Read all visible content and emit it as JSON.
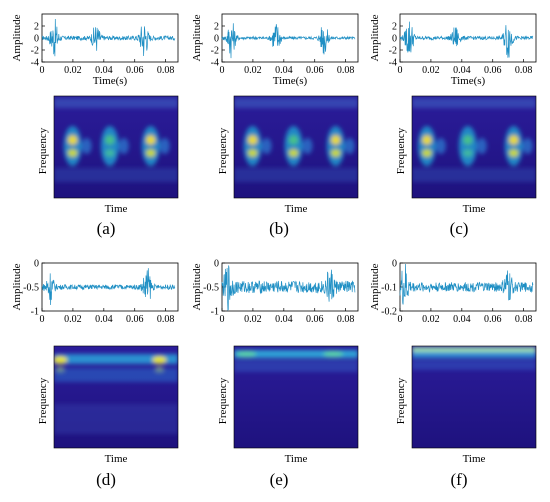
{
  "figure": {
    "panels": [
      {
        "id": "a",
        "caption": "(a)",
        "wave": {
          "ylabel": "Amplitude",
          "xlabel": "Time(s)",
          "ylim": [
            -4,
            4
          ],
          "yticks": [
            "2",
            "0",
            "-2",
            "-4"
          ],
          "xticks": [
            "0",
            "0.02",
            "0.04",
            "0.06",
            "0.08"
          ],
          "baseline": 0,
          "bursts": [
            {
              "t": 0.008,
              "amp": 3.0
            },
            {
              "t": 0.035,
              "amp": 2.2
            },
            {
              "t": 0.066,
              "amp": 3.2
            }
          ],
          "noise": 0.35
        },
        "spec": {
          "ylabel": "Frequency",
          "xlabel": "Time",
          "pattern": "speech",
          "blob_times": [
            0.15,
            0.45,
            0.78
          ],
          "bright": [
            1,
            0.75,
            0.9
          ]
        }
      },
      {
        "id": "b",
        "caption": "(b)",
        "wave": {
          "ylabel": "Amplitude",
          "xlabel": "Time(s)",
          "ylim": [
            -4,
            4
          ],
          "yticks": [
            "2",
            "0",
            "-2",
            "-4"
          ],
          "xticks": [
            "0",
            "0.02",
            "0.04",
            "0.06",
            "0.08"
          ],
          "baseline": 0,
          "bursts": [
            {
              "t": 0.006,
              "amp": 3.2
            },
            {
              "t": 0.035,
              "amp": 2.8
            },
            {
              "t": 0.066,
              "amp": 2.8
            }
          ],
          "noise": 0.25
        },
        "spec": {
          "ylabel": "Frequency",
          "xlabel": "Time",
          "pattern": "speech",
          "blob_times": [
            0.15,
            0.48,
            0.82
          ],
          "bright": [
            0.9,
            0.85,
            0.95
          ]
        }
      },
      {
        "id": "c",
        "caption": "(c)",
        "wave": {
          "ylabel": "Amplitude",
          "xlabel": "Time(s)",
          "ylim": [
            -4,
            4
          ],
          "yticks": [
            "2",
            "0",
            "-2",
            "-4"
          ],
          "xticks": [
            "0",
            "0.02",
            "0.04",
            "0.06",
            "0.08"
          ],
          "baseline": 0,
          "bursts": [
            {
              "t": 0.006,
              "amp": 3.3
            },
            {
              "t": 0.036,
              "amp": 1.8
            },
            {
              "t": 0.07,
              "amp": 3.4
            }
          ],
          "noise": 0.3
        },
        "spec": {
          "ylabel": "Frequency",
          "xlabel": "Time",
          "pattern": "speech",
          "blob_times": [
            0.12,
            0.45,
            0.82
          ],
          "bright": [
            0.9,
            0.7,
            1
          ]
        }
      },
      {
        "id": "d",
        "caption": "(d)",
        "wave": {
          "ylabel": "Amplitude",
          "xlabel": "",
          "ylim": [
            -1,
            0
          ],
          "yticks": [
            "0",
            "-0.5",
            "-1"
          ],
          "xticks": [
            "0",
            "0.02",
            "0.04",
            "0.06",
            "0.08"
          ],
          "baseline": -0.5,
          "bursts": [
            {
              "t": 0.005,
              "amp": 0.35
            },
            {
              "t": 0.068,
              "amp": 0.4
            }
          ],
          "noise": 0.05
        },
        "spec": {
          "ylabel": "Frequency",
          "xlabel": "Time",
          "pattern": "lowband",
          "blob_times": [
            0.05,
            0.85
          ],
          "bright": [
            1,
            0.9
          ]
        }
      },
      {
        "id": "e",
        "caption": "(e)",
        "wave": {
          "ylabel": "Amplitude",
          "xlabel": "",
          "ylim": [
            -1,
            0
          ],
          "yticks": [
            "0",
            "-0.5",
            "-1"
          ],
          "xticks": [
            "0",
            "0.02",
            "0.04",
            "0.06",
            "0.08"
          ],
          "baseline": -0.5,
          "bursts": [
            {
              "t": 0.004,
              "amp": 0.4
            },
            {
              "t": 0.07,
              "amp": 0.3
            }
          ],
          "noise": 0.13
        },
        "spec": {
          "ylabel": "Frequency",
          "xlabel": "Time",
          "pattern": "band",
          "blob_times": [
            0.1,
            0.8
          ],
          "bright": [
            0.8,
            0.7
          ]
        }
      },
      {
        "id": "f",
        "caption": "(f)",
        "wave": {
          "ylabel": "Amplitude",
          "xlabel": "",
          "ylim": [
            -0.2,
            0
          ],
          "yticks": [
            "0",
            "-0.1",
            "-0.2"
          ],
          "xticks": [
            "0",
            "0.02",
            "0.04",
            "0.06",
            "0.08"
          ],
          "baseline": -0.1,
          "bursts": [
            {
              "t": 0.003,
              "amp": 0.09
            },
            {
              "t": 0.07,
              "amp": 0.06
            }
          ],
          "noise": 0.02
        },
        "spec": {
          "ylabel": "Frequency",
          "xlabel": "Time",
          "pattern": "topband",
          "blob_times": [
            0.5
          ],
          "bright": [
            0.9
          ]
        }
      }
    ],
    "colors": {
      "line": "#1f8fc4",
      "spec_base": "#2b1c9a",
      "spec_deep": "#1e127e"
    }
  }
}
